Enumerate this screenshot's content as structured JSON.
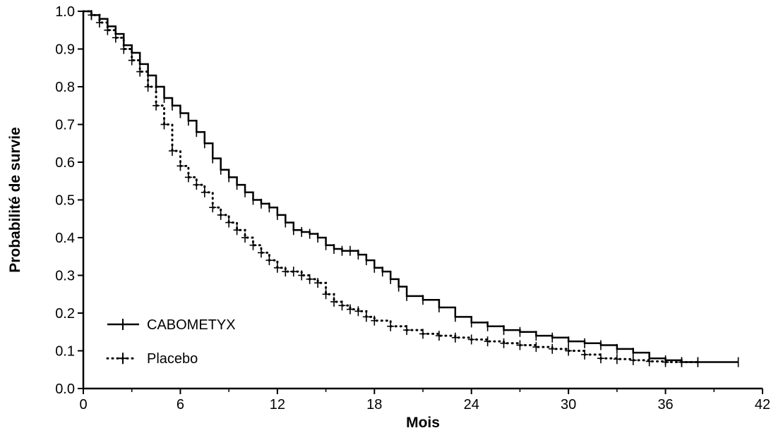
{
  "chart_data": {
    "type": "line",
    "title": "",
    "xlabel": "Mois",
    "ylabel": "Probabilité de survie",
    "xlim": [
      0,
      42
    ],
    "ylim": [
      0,
      1.0
    ],
    "x_ticks": [
      0,
      6,
      12,
      18,
      24,
      30,
      36,
      42
    ],
    "y_ticks": [
      0.0,
      0.1,
      0.2,
      0.3,
      0.4,
      0.5,
      0.6,
      0.7,
      0.8,
      0.9,
      1.0
    ],
    "x_tick_labels": [
      "0",
      "6",
      "12",
      "18",
      "24",
      "30",
      "36",
      "42"
    ],
    "y_tick_labels": [
      "0.0",
      "0.1",
      "0.2",
      "0.3",
      "0.4",
      "0.5",
      "0.6",
      "0.7",
      "0.8",
      "0.9",
      "1.0"
    ],
    "grid": false,
    "legend_position": "bottom-left",
    "series": [
      {
        "name": "CABOMETYX",
        "style": "solid",
        "color": "#000000",
        "x": [
          0,
          0.5,
          1,
          1.5,
          2,
          2.5,
          3,
          3.5,
          4,
          4.5,
          5,
          5.5,
          6,
          6.5,
          7,
          7.5,
          8,
          8.5,
          9,
          9.5,
          10,
          10.5,
          11,
          11.5,
          12,
          12.5,
          13,
          13.5,
          14,
          14.5,
          15,
          15.5,
          16,
          16.5,
          17,
          17.5,
          18,
          18.5,
          19,
          19.5,
          20,
          21,
          22,
          23,
          24,
          25,
          26,
          27,
          28,
          29,
          30,
          31,
          32,
          33,
          34,
          35,
          36,
          37,
          38,
          40.5
        ],
        "y": [
          1.0,
          0.99,
          0.98,
          0.96,
          0.94,
          0.91,
          0.89,
          0.86,
          0.83,
          0.8,
          0.77,
          0.75,
          0.73,
          0.71,
          0.68,
          0.65,
          0.61,
          0.58,
          0.56,
          0.54,
          0.52,
          0.5,
          0.49,
          0.48,
          0.46,
          0.44,
          0.42,
          0.415,
          0.41,
          0.4,
          0.38,
          0.37,
          0.365,
          0.365,
          0.355,
          0.34,
          0.32,
          0.31,
          0.29,
          0.27,
          0.245,
          0.235,
          0.215,
          0.19,
          0.175,
          0.165,
          0.155,
          0.15,
          0.14,
          0.135,
          0.125,
          0.12,
          0.115,
          0.105,
          0.095,
          0.08,
          0.075,
          0.07,
          0.07,
          0.07
        ]
      },
      {
        "name": "Placebo",
        "style": "dotted",
        "color": "#000000",
        "x": [
          0,
          0.5,
          1,
          1.5,
          2,
          2.5,
          3,
          3.5,
          4,
          4.5,
          5,
          5.5,
          6,
          6.5,
          7,
          7.5,
          8,
          8.5,
          9,
          9.5,
          10,
          10.5,
          11,
          11.5,
          12,
          12.5,
          13,
          13.5,
          14,
          14.5,
          15,
          15.5,
          16,
          16.5,
          17,
          17.5,
          18,
          19,
          20,
          21,
          22,
          23,
          24,
          25,
          26,
          27,
          28,
          29,
          30,
          31,
          32,
          33,
          34,
          35,
          36,
          37,
          38
        ],
        "y": [
          1.0,
          0.99,
          0.97,
          0.95,
          0.93,
          0.9,
          0.87,
          0.84,
          0.8,
          0.75,
          0.7,
          0.63,
          0.59,
          0.56,
          0.54,
          0.52,
          0.48,
          0.46,
          0.44,
          0.42,
          0.4,
          0.38,
          0.36,
          0.34,
          0.32,
          0.31,
          0.31,
          0.3,
          0.29,
          0.28,
          0.25,
          0.23,
          0.22,
          0.21,
          0.205,
          0.19,
          0.18,
          0.165,
          0.155,
          0.145,
          0.14,
          0.135,
          0.13,
          0.125,
          0.12,
          0.115,
          0.11,
          0.105,
          0.1,
          0.09,
          0.08,
          0.078,
          0.075,
          0.072,
          0.07,
          0.07,
          0.07
        ]
      }
    ]
  }
}
